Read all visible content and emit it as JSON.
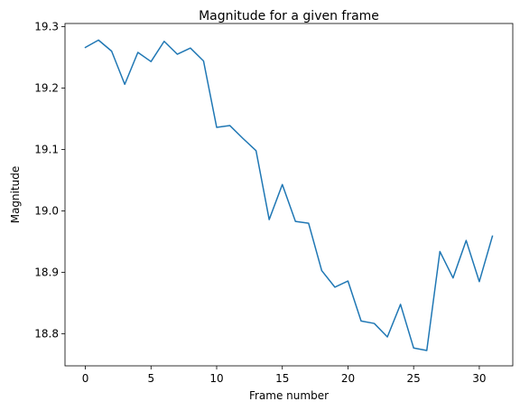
{
  "chart_data": {
    "type": "line",
    "title": "Magnitude for a given frame",
    "xlabel": "Frame number",
    "ylabel": "Magnitude",
    "xlim": [
      -1.55,
      32.55
    ],
    "ylim": [
      18.748,
      19.305
    ],
    "xticks": [
      0,
      5,
      10,
      15,
      20,
      25,
      30
    ],
    "yticks": [
      18.8,
      18.9,
      19.0,
      19.1,
      19.2,
      19.3
    ],
    "ytick_labels": [
      "18.8",
      "18.9",
      "19.0",
      "19.1",
      "19.2",
      "19.3"
    ],
    "grid": false,
    "line_color": "#1f77b4",
    "x": [
      0,
      1,
      2,
      3,
      4,
      5,
      6,
      7,
      8,
      9,
      10,
      11,
      12,
      13,
      14,
      15,
      16,
      17,
      18,
      19,
      20,
      21,
      22,
      23,
      24,
      25,
      26,
      27,
      28,
      29,
      30,
      31
    ],
    "y": [
      19.266,
      19.278,
      19.26,
      19.206,
      19.258,
      19.243,
      19.276,
      19.255,
      19.265,
      19.244,
      19.136,
      19.139,
      19.118,
      19.098,
      18.986,
      19.043,
      18.983,
      18.98,
      18.903,
      18.876,
      18.886,
      18.821,
      18.817,
      18.795,
      18.848,
      18.777,
      18.773,
      18.934,
      18.891,
      18.952,
      18.885,
      18.959
    ]
  }
}
